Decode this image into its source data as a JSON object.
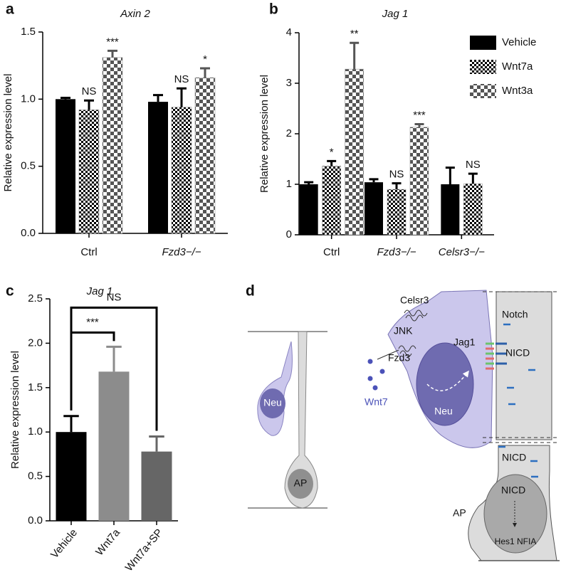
{
  "chart_data": [
    {
      "type": "bar",
      "panel": "a",
      "title": "Axin 2",
      "ylabel": "Relative expression level",
      "categories": [
        "Ctrl",
        "Fzd3−/−"
      ],
      "series": [
        {
          "name": "Vehicle",
          "color": "#000000",
          "values": [
            1.0,
            0.98
          ],
          "errors": [
            0.01,
            0.05
          ]
        },
        {
          "name": "Wnt7a",
          "color": "#000000",
          "pattern": "checker-fine",
          "values": [
            0.92,
            0.94
          ],
          "errors": [
            0.07,
            0.14
          ],
          "significance": [
            "NS",
            "NS"
          ]
        },
        {
          "name": "Wnt3a",
          "color": "#555555",
          "pattern": "checker-coarse",
          "values": [
            1.31,
            1.16
          ],
          "errors": [
            0.05,
            0.07
          ],
          "significance": [
            "***",
            "*"
          ]
        }
      ],
      "ylim": [
        0,
        1.5
      ],
      "yticks": [
        {
          "value": 0,
          "label": "0.0"
        },
        {
          "value": 0.5,
          "label": "0.5"
        },
        {
          "value": 1,
          "label": "1.0"
        },
        {
          "value": 1.5,
          "label": "1.5"
        }
      ]
    },
    {
      "type": "bar",
      "panel": "b",
      "title": "Jag 1",
      "ylabel": "Relative expression level",
      "categories": [
        "Ctrl",
        "Fzd3−/−",
        "Celsr3−/−"
      ],
      "series": [
        {
          "name": "Vehicle",
          "color": "#000000",
          "values": [
            1.0,
            1.04,
            1.0
          ],
          "errors": [
            0.04,
            0.06,
            0.33
          ]
        },
        {
          "name": "Wnt7a",
          "color": "#000000",
          "pattern": "checker-fine",
          "values": [
            1.36,
            0.9,
            1.01
          ],
          "errors": [
            0.1,
            0.12,
            0.2
          ],
          "significance": [
            "*",
            "NS",
            "NS"
          ]
        },
        {
          "name": "Wnt3a",
          "color": "#555555",
          "pattern": "checker-coarse",
          "values": [
            3.28,
            2.13,
            null
          ],
          "errors": [
            0.52,
            0.06,
            null
          ],
          "significance": [
            "**",
            "***",
            null
          ]
        }
      ],
      "ylim": [
        0,
        4
      ],
      "yticks": [
        0,
        1,
        2,
        3,
        4
      ],
      "legend": "top-right"
    },
    {
      "type": "bar",
      "panel": "c",
      "title": "Jag 1",
      "ylabel": "Relative expression level",
      "categories": [
        "Vehicle",
        "Wnt7a",
        "Wnt7a+SP"
      ],
      "values": [
        1.0,
        1.68,
        0.78
      ],
      "errors": [
        0.18,
        0.28,
        0.17
      ],
      "colors": [
        "#000000",
        "#8c8c8c",
        "#666666"
      ],
      "comparisons": [
        "***",
        "NS"
      ],
      "ylim": [
        0,
        2.5
      ],
      "yticks": [
        {
          "value": 0,
          "label": "0.0"
        },
        {
          "value": 0.5,
          "label": "0.5"
        },
        {
          "value": 1,
          "label": "1.0"
        },
        {
          "value": 1.5,
          "label": "1.5"
        },
        {
          "value": 2,
          "label": "2.0"
        },
        {
          "value": 2.5,
          "label": "2.5"
        }
      ]
    }
  ],
  "diagram": {
    "panel": "d",
    "left": {
      "neuron": "Neu",
      "progenitor": "AP"
    },
    "right": {
      "celsr": "Celsr3",
      "jnk": "JNK",
      "jag": "Jag1",
      "notch": "Notch",
      "nicd_top": "NICD",
      "fzd": "Fzd3",
      "neuron": "Neu",
      "wnt": "Wnt7",
      "nicd_neck": "NICD",
      "nicd_nucleus": "NICD",
      "targets": "Hes1 NFIA",
      "progenitor": "AP"
    }
  }
}
